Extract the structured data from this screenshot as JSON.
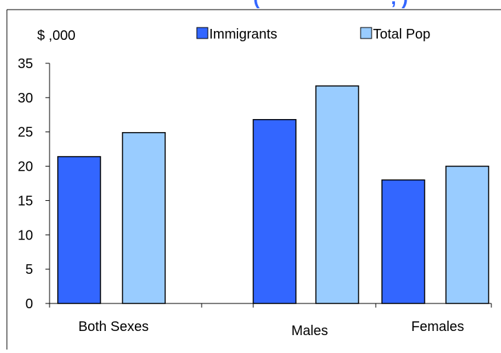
{
  "chart_data": {
    "type": "bar",
    "title": "(",
    "title_fragment_right": ", )",
    "ylabel": "$ ,000",
    "xlabel": "",
    "categories": [
      "Both Sexes",
      "Males",
      "Females"
    ],
    "ylim": [
      0,
      35
    ],
    "yticks": [
      0,
      5,
      10,
      15,
      20,
      25,
      30,
      35
    ],
    "legend_position": "top",
    "grid": false,
    "series": [
      {
        "name": "Immigrants",
        "values": [
          21.4,
          26.8,
          18.0
        ],
        "color": "#3366FF"
      },
      {
        "name": "Total Pop",
        "values": [
          24.9,
          31.7,
          20.0
        ],
        "color": "#99CCFF"
      }
    ],
    "title_color": "#3366FF",
    "bar_stroke_color": "#000000"
  }
}
